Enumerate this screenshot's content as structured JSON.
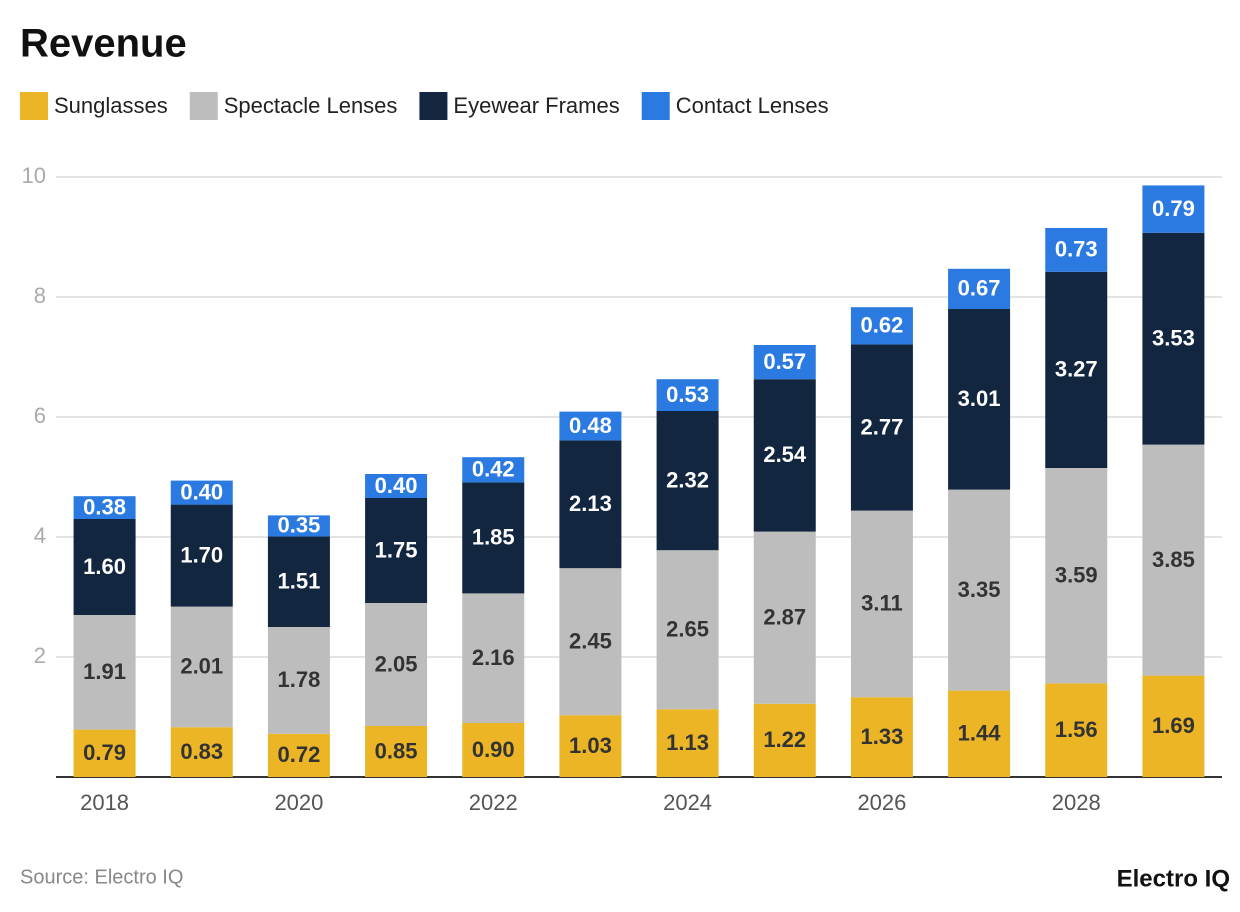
{
  "chart_data": {
    "type": "stacked_bar",
    "title": "Revenue",
    "categories": [
      "2018",
      null,
      "2020",
      null,
      "2022",
      null,
      "2024",
      null,
      "2026",
      null,
      "2028",
      null
    ],
    "series": [
      {
        "name": "Sunglasses",
        "color": "#ebb526",
        "values": [
          0.79,
          0.83,
          0.72,
          0.85,
          0.9,
          1.03,
          1.13,
          1.22,
          1.33,
          1.44,
          1.56,
          1.69
        ],
        "value_labels": [
          "0.79",
          "0.83",
          "0.72",
          "0.85",
          "0.90",
          "1.03",
          "1.13",
          "1.22",
          "1.33",
          "1.44",
          "1.56",
          "1.69"
        ]
      },
      {
        "name": "Spectacle Lenses",
        "color": "#bdbdbd",
        "values": [
          1.91,
          2.01,
          1.78,
          2.05,
          2.16,
          2.45,
          2.65,
          2.87,
          3.11,
          3.35,
          3.59,
          3.85
        ],
        "value_labels": [
          "1.91",
          "2.01",
          "1.78",
          "2.05",
          "2.16",
          "2.45",
          "2.65",
          "2.87",
          "3.11",
          "3.35",
          "3.59",
          "3.85"
        ]
      },
      {
        "name": "Eyewear Frames",
        "color": "#12263f",
        "values": [
          1.6,
          1.7,
          1.51,
          1.75,
          1.85,
          2.13,
          2.32,
          2.54,
          2.77,
          3.01,
          3.27,
          3.53
        ],
        "value_labels": [
          "1.60",
          "1.70",
          "1.51",
          "1.75",
          "1.85",
          "2.13",
          "2.32",
          "2.54",
          "2.77",
          "3.01",
          "3.27",
          "3.53"
        ]
      },
      {
        "name": "Contact Lenses",
        "color": "#2a7ae2",
        "values": [
          0.38,
          0.4,
          0.35,
          0.4,
          0.42,
          0.48,
          0.53,
          0.57,
          0.62,
          0.67,
          0.73,
          0.79
        ],
        "value_labels": [
          "0.38",
          "0.40",
          "0.35",
          "0.40",
          "0.42",
          "0.48",
          "0.53",
          "0.57",
          "0.62",
          "0.67",
          "0.73",
          "0.79"
        ]
      }
    ],
    "ylim": [
      0,
      10
    ],
    "yticks": [
      2,
      4,
      6,
      8,
      10
    ],
    "grid": true,
    "source": "Source: Electro IQ",
    "logo": "Electro IQ"
  }
}
